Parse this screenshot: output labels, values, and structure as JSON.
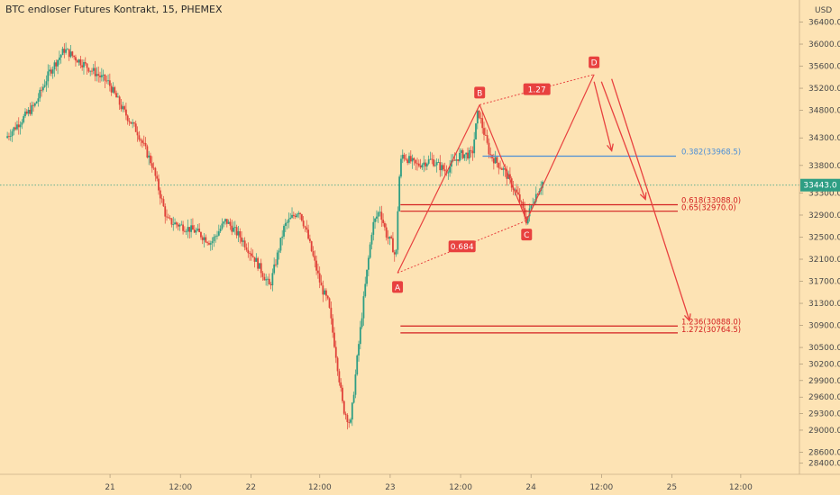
{
  "chart_data": {
    "type": "candlestick",
    "title": "BTC endloser Futures Kontrakt, 15, PHEMEX",
    "currency_label": "USD",
    "ylim": [
      28200,
      36800
    ],
    "y_ticks": [
      28400,
      28600,
      29000,
      29300,
      29600,
      29900,
      30200,
      30500,
      30900,
      31300,
      31700,
      32100,
      32500,
      32900,
      33300,
      33800,
      34300,
      34800,
      35200,
      35600,
      36000,
      36400
    ],
    "y_tick_labels": [
      "28400.0",
      "28600.0",
      "29000.0",
      "29300.0",
      "29600.0",
      "29900.0",
      "30200.0",
      "30500.0",
      "30900.0",
      "31300.0",
      "31700.0",
      "32100.0",
      "32500.0",
      "32900.0",
      "33300.0",
      "33800.0",
      "34300.0",
      "34800.0",
      "35200.0",
      "35600.0",
      "36000.0",
      "36400.0"
    ],
    "x_ticks": [
      {
        "label": "21",
        "t": 0.7
      },
      {
        "label": "12:00",
        "t": 1.18
      },
      {
        "label": "22",
        "t": 1.66
      },
      {
        "label": "12:00",
        "t": 2.13
      },
      {
        "label": "23",
        "t": 2.61
      },
      {
        "label": "12:00",
        "t": 3.09
      },
      {
        "label": "24",
        "t": 3.57
      },
      {
        "label": "12:00",
        "t": 4.05
      },
      {
        "label": "25",
        "t": 4.53
      },
      {
        "label": "12:00",
        "t": 5.0
      }
    ],
    "price_path": [
      [
        0.0,
        34300
      ],
      [
        0.1,
        34600
      ],
      [
        0.2,
        34900
      ],
      [
        0.3,
        35500
      ],
      [
        0.4,
        35900
      ],
      [
        0.5,
        35700
      ],
      [
        0.6,
        35500
      ],
      [
        0.7,
        35300
      ],
      [
        0.8,
        34800
      ],
      [
        0.9,
        34400
      ],
      [
        1.0,
        33800
      ],
      [
        1.05,
        33300
      ],
      [
        1.1,
        32800
      ],
      [
        1.2,
        32700
      ],
      [
        1.3,
        32600
      ],
      [
        1.4,
        32400
      ],
      [
        1.5,
        32800
      ],
      [
        1.6,
        32500
      ],
      [
        1.7,
        32100
      ],
      [
        1.8,
        31600
      ],
      [
        1.9,
        32700
      ],
      [
        2.0,
        33000
      ],
      [
        2.05,
        32600
      ],
      [
        2.1,
        32100
      ],
      [
        2.15,
        31600
      ],
      [
        2.2,
        31300
      ],
      [
        2.25,
        30400
      ],
      [
        2.3,
        29400
      ],
      [
        2.35,
        29100
      ],
      [
        2.4,
        30400
      ],
      [
        2.45,
        31600
      ],
      [
        2.5,
        32700
      ],
      [
        2.55,
        33000
      ],
      [
        2.6,
        32500
      ],
      [
        2.63,
        32400
      ],
      [
        2.66,
        32100
      ],
      [
        2.68,
        33500
      ],
      [
        2.7,
        34000
      ],
      [
        2.8,
        33800
      ],
      [
        2.9,
        33900
      ],
      [
        3.0,
        33700
      ],
      [
        3.1,
        34000
      ],
      [
        3.18,
        34000
      ],
      [
        3.22,
        34800
      ],
      [
        3.3,
        34000
      ],
      [
        3.4,
        33700
      ],
      [
        3.5,
        33200
      ],
      [
        3.55,
        32800
      ],
      [
        3.6,
        33200
      ],
      [
        3.66,
        33500
      ]
    ],
    "last_price": 33443.0,
    "last_price_label": "33443.0",
    "pattern": {
      "points": [
        {
          "label": "A",
          "t": 2.66,
          "price": 31850
        },
        {
          "label": "B",
          "t": 3.22,
          "price": 34900
        },
        {
          "label": "C",
          "t": 3.54,
          "price": 32800
        },
        {
          "label": "D",
          "t": 4.0,
          "price": 35450
        }
      ],
      "ratios": [
        {
          "label": "0.684",
          "between": "A-C"
        },
        {
          "label": "1.27",
          "between": "B-D"
        }
      ]
    },
    "fib_levels": [
      {
        "label": "0.382(33968.5)",
        "price": 33968.5,
        "color": "#4d8fd6"
      },
      {
        "label": "0.618(33088.0)",
        "price": 33088.0,
        "color": "#d32020"
      },
      {
        "label": "0.65(32970.0)",
        "price": 32970.0,
        "color": "#d32020"
      },
      {
        "label": "1.236(30888.0)",
        "price": 30888.0,
        "color": "#d32020"
      },
      {
        "label": "1.272(30764.5)",
        "price": 30764.5,
        "color": "#d32020"
      }
    ],
    "arrows": [
      {
        "from_t": 4.0,
        "from_price": 35450,
        "to_t": 4.12,
        "to_price": 33968.5
      },
      {
        "from_t": 4.05,
        "from_price": 35450,
        "to_t": 4.35,
        "to_price": 33088.0
      },
      {
        "from_t": 4.12,
        "from_price": 35500,
        "to_t": 4.65,
        "to_price": 30888.0
      }
    ],
    "colors": {
      "background": "#fde3b4",
      "up": "#2e9e84",
      "down": "#e0433a",
      "pattern": "#e8413f",
      "last_price_line": "#2e9e84",
      "grid": "#f2d3a4"
    }
  }
}
